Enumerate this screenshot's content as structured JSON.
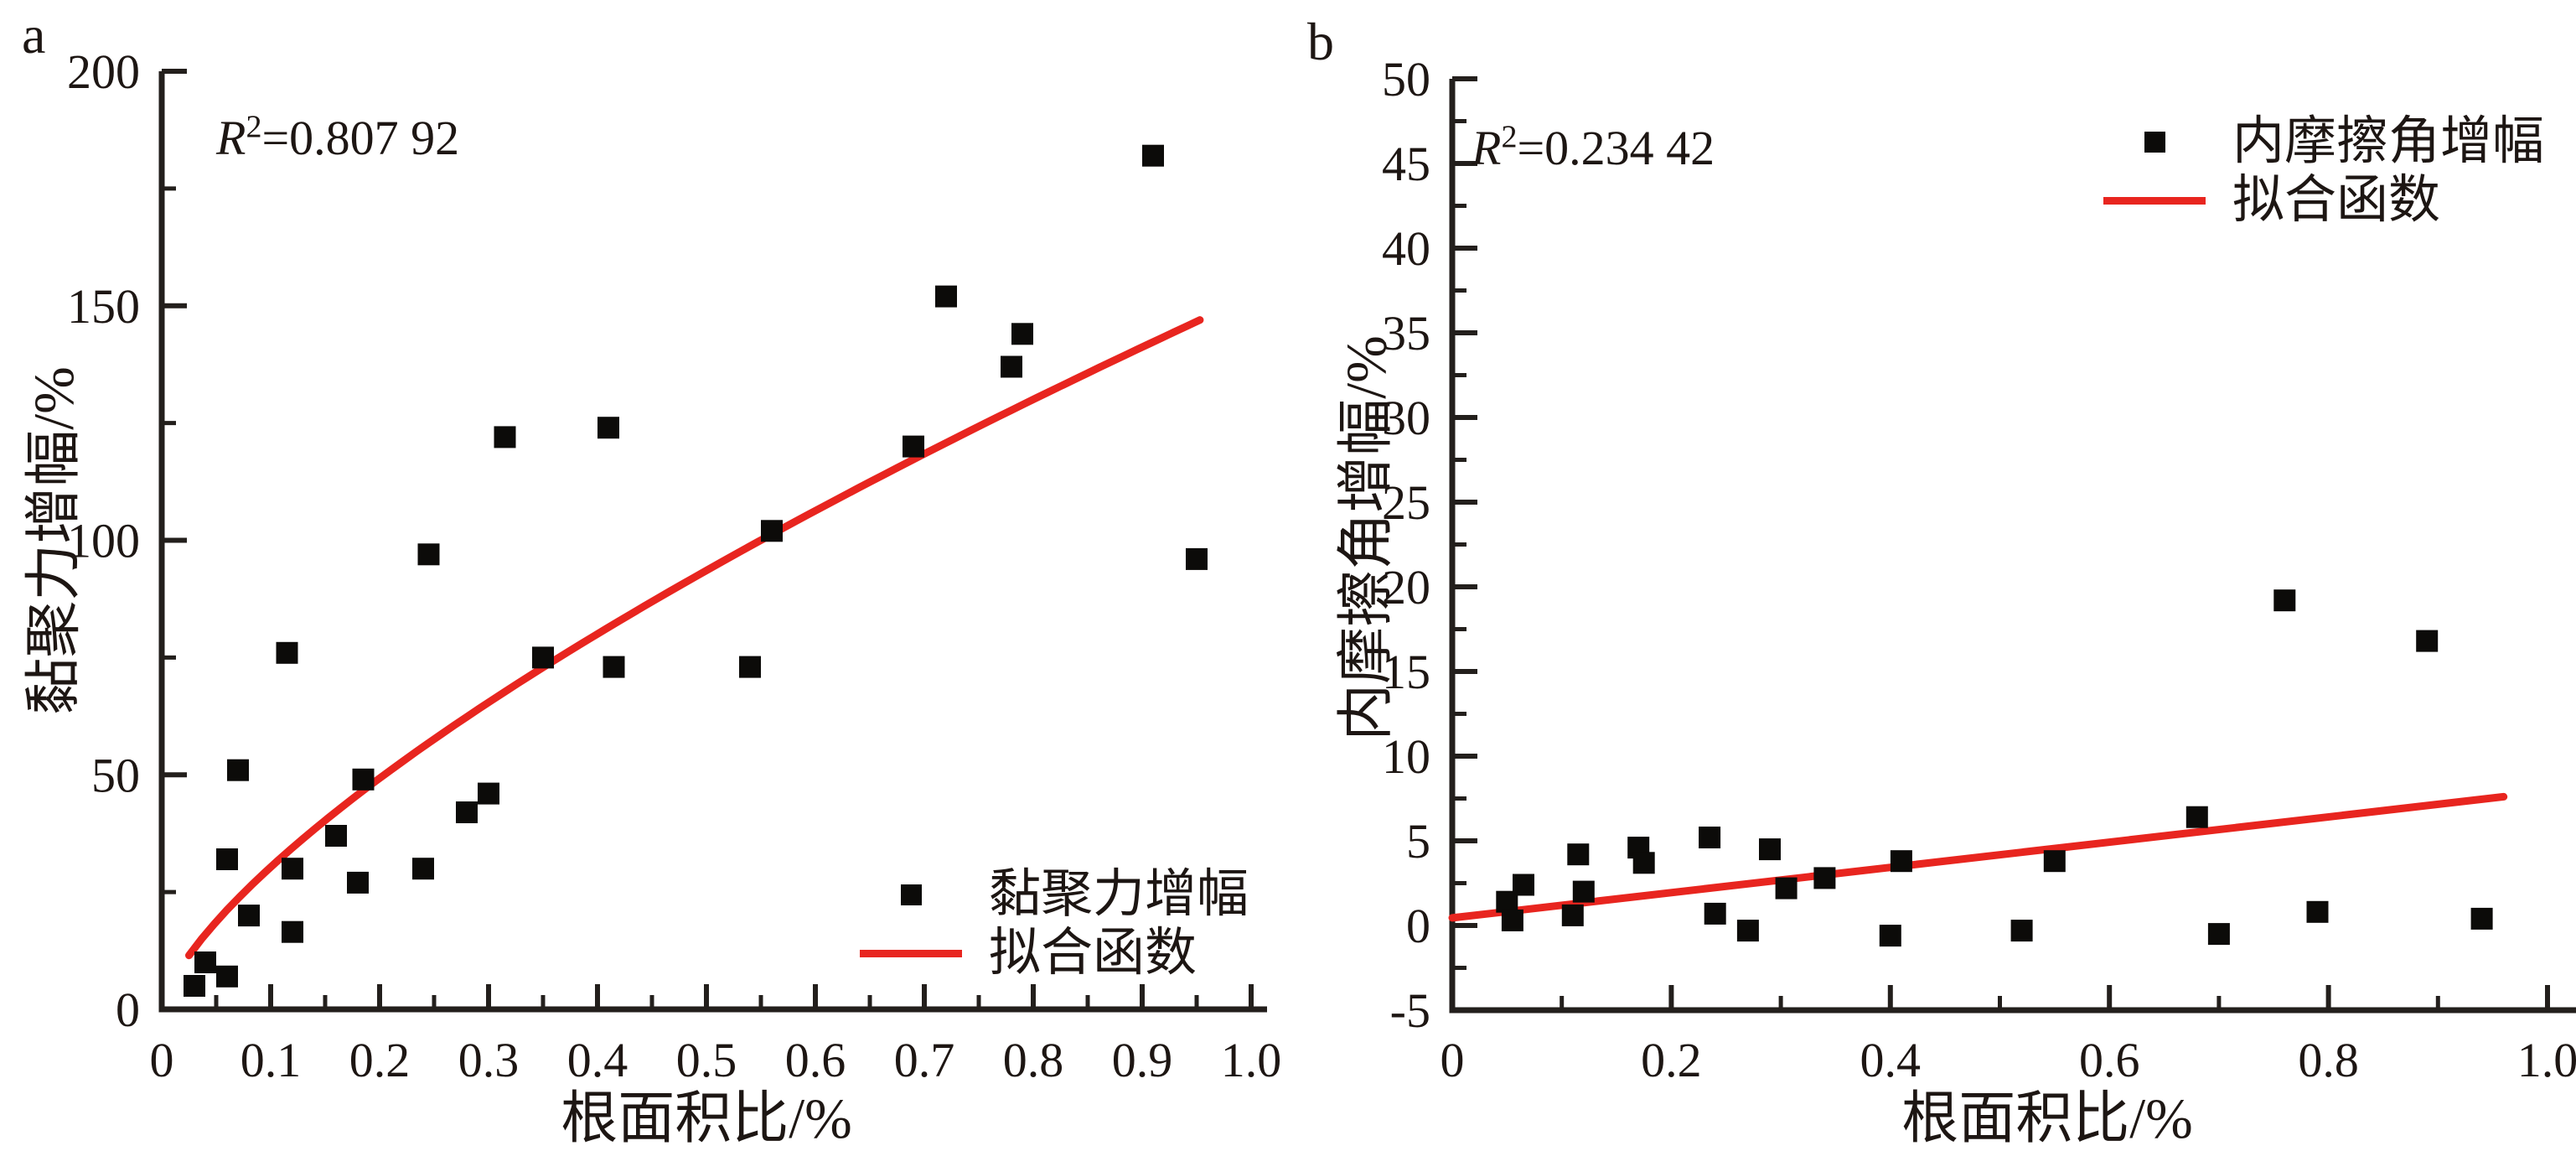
{
  "figure": {
    "background_color": "#ffffff",
    "text_color": "#1d1613",
    "axis_color": "#231f1c",
    "marker_color": "#0c0b09",
    "fit_line_color": "#e8251f"
  },
  "chart_data": [
    {
      "type": "scatter",
      "panel_label": "a",
      "title": "",
      "r2": {
        "symbol": "R",
        "exponent": "2",
        "value": "=0.807 92"
      },
      "xlabel": "根面积比/%",
      "ylabel": "黏聚力增幅/%",
      "xlim": [
        0,
        1.0
      ],
      "ylim": [
        0,
        200
      ],
      "grid": false,
      "x_tick_values": [
        0,
        0.1,
        0.2,
        0.3,
        0.4,
        0.5,
        0.6,
        0.7,
        0.8,
        0.9,
        1.0
      ],
      "x_tick_labels": [
        "0",
        "0.1",
        "0.2",
        "0.3",
        "0.4",
        "0.5",
        "0.6",
        "0.7",
        "0.8",
        "0.9",
        "1.0"
      ],
      "x_minor_step": 0.05,
      "y_tick_values": [
        0,
        50,
        100,
        150,
        200
      ],
      "y_tick_labels": [
        "0",
        "50",
        "100",
        "150",
        "200"
      ],
      "y_minor_step": 25,
      "legend": {
        "position": "lower-right",
        "entries": [
          {
            "type": "marker",
            "label": "黏聚力增幅"
          },
          {
            "type": "line",
            "label": "拟合函数"
          }
        ]
      },
      "series": [
        {
          "name": "黏聚力增幅",
          "type": "scatter",
          "marker": "square",
          "color": "#0c0b09",
          "points": [
            [
              0.03,
              5
            ],
            [
              0.04,
              10
            ],
            [
              0.06,
              7
            ],
            [
              0.06,
              32
            ],
            [
              0.07,
              51
            ],
            [
              0.08,
              20
            ],
            [
              0.115,
              76
            ],
            [
              0.12,
              30
            ],
            [
              0.12,
              16.5
            ],
            [
              0.16,
              37
            ],
            [
              0.185,
              49
            ],
            [
              0.18,
              27
            ],
            [
              0.245,
              97
            ],
            [
              0.24,
              30
            ],
            [
              0.28,
              42
            ],
            [
              0.3,
              46
            ],
            [
              0.315,
              122
            ],
            [
              0.35,
              75
            ],
            [
              0.41,
              124
            ],
            [
              0.415,
              73
            ],
            [
              0.54,
              73
            ],
            [
              0.56,
              102
            ],
            [
              0.69,
              120
            ],
            [
              0.72,
              152
            ],
            [
              0.78,
              137
            ],
            [
              0.79,
              144
            ],
            [
              0.91,
              182
            ],
            [
              0.95,
              96
            ]
          ]
        },
        {
          "name": "拟合函数",
          "type": "fit-curve",
          "color": "#e8251f",
          "fit": "power",
          "equation": "y = 152·x^0.7",
          "params": {
            "a": 152,
            "b": 0.7
          },
          "domain": [
            0.025,
            0.953
          ]
        }
      ]
    },
    {
      "type": "scatter",
      "panel_label": "b",
      "title": "",
      "r2": {
        "symbol": "R",
        "exponent": "2",
        "value": "=0.234 42"
      },
      "xlabel": "根面积比/%",
      "ylabel": "内摩擦角增幅/%",
      "xlim": [
        0,
        1.0
      ],
      "ylim": [
        -5,
        50
      ],
      "grid": false,
      "x_tick_values": [
        0,
        0.2,
        0.4,
        0.6,
        0.8,
        1.0
      ],
      "x_tick_labels": [
        "0",
        "0.2",
        "0.4",
        "0.6",
        "0.8",
        "1.0"
      ],
      "x_minor_step": 0.1,
      "y_tick_values": [
        -5,
        0,
        5,
        10,
        15,
        20,
        25,
        30,
        35,
        40,
        45,
        50
      ],
      "y_tick_labels": [
        "-5",
        "0",
        "5",
        "10",
        "15",
        "20",
        "25",
        "30",
        "35",
        "40",
        "45",
        "50"
      ],
      "y_minor_step": 2.5,
      "legend": {
        "position": "upper-right",
        "entries": [
          {
            "type": "marker",
            "label": "内摩擦角增幅"
          },
          {
            "type": "line",
            "label": "拟合函数"
          }
        ]
      },
      "series": [
        {
          "name": "内摩擦角增幅",
          "type": "scatter",
          "marker": "square",
          "color": "#0c0b09",
          "points": [
            [
              0.05,
              1.4
            ],
            [
              0.055,
              0.3
            ],
            [
              0.065,
              2.4
            ],
            [
              0.11,
              0.6
            ],
            [
              0.115,
              4.2
            ],
            [
              0.12,
              2.0
            ],
            [
              0.17,
              4.6
            ],
            [
              0.175,
              3.7
            ],
            [
              0.235,
              5.2
            ],
            [
              0.24,
              0.7
            ],
            [
              0.27,
              -0.3
            ],
            [
              0.29,
              4.5
            ],
            [
              0.305,
              2.2
            ],
            [
              0.34,
              2.8
            ],
            [
              0.4,
              -0.6
            ],
            [
              0.41,
              3.8
            ],
            [
              0.52,
              -0.3
            ],
            [
              0.55,
              3.8
            ],
            [
              0.68,
              6.4
            ],
            [
              0.7,
              -0.5
            ],
            [
              0.76,
              19.2
            ],
            [
              0.79,
              0.8
            ],
            [
              0.89,
              16.8
            ],
            [
              0.94,
              0.4
            ]
          ]
        },
        {
          "name": "拟合函数",
          "type": "fit-line",
          "color": "#e8251f",
          "fit": "linear",
          "equation": "y = 0.45 + 7.45·x",
          "params": {
            "intercept": 0.45,
            "slope": 7.45
          },
          "domain": [
            0,
            0.96
          ]
        }
      ]
    }
  ]
}
